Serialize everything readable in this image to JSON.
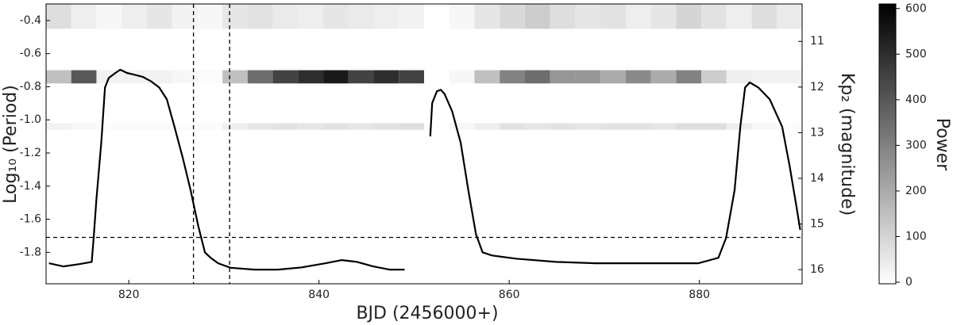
{
  "chart_data": {
    "type": "heatmap",
    "x_label": "BJD (2456000+)",
    "y_label": "Log₁₀ (Period)",
    "y2_label": "Kp₂ (magnitude)",
    "colorbar_label": "Power",
    "xlim": [
      811.3,
      890.8
    ],
    "xticks": [
      820,
      840,
      860,
      880
    ],
    "ylim": [
      -1.99,
      -0.3
    ],
    "yticks": [
      -0.4,
      -0.6,
      -0.8,
      {
        "value": -1,
        "label": "-1.0"
      },
      -1.2,
      -1.4,
      -1.6,
      -1.8
    ],
    "y2lim": [
      10.18,
      16.31
    ],
    "y2_inverted": true,
    "y2ticks": [
      11,
      12,
      13,
      14,
      15,
      16
    ],
    "clim": [
      0,
      610
    ],
    "cticks": [
      0,
      100,
      200,
      300,
      400,
      500,
      600
    ],
    "vlines": [
      826.8,
      830.6
    ],
    "hlines": [
      -1.71
    ],
    "x_bins": [
      811.3,
      813.95,
      816.6,
      819.25,
      821.9,
      824.55,
      827.2,
      829.85,
      832.5,
      835.15,
      837.8,
      840.45,
      843.1,
      845.75,
      848.4,
      851.05,
      853.7,
      856.35,
      859.0,
      861.65,
      864.3,
      866.95,
      869.6,
      872.25,
      874.9,
      877.55,
      880.2,
      882.85,
      885.5,
      888.15,
      890.8
    ],
    "y_rows": [
      [
        -0.45,
        -0.3
      ],
      [
        -0.78,
        -0.7
      ],
      [
        -1.06,
        -1.02
      ]
    ],
    "z": [
      [
        80,
        40,
        20,
        40,
        60,
        30,
        20,
        60,
        70,
        50,
        40,
        60,
        50,
        40,
        30,
        0,
        20,
        60,
        90,
        120,
        80,
        60,
        70,
        40,
        60,
        100,
        70,
        40,
        80,
        50
      ],
      [
        150,
        400,
        30,
        30,
        30,
        20,
        10,
        150,
        350,
        450,
        500,
        550,
        450,
        500,
        450,
        0,
        20,
        150,
        300,
        350,
        250,
        250,
        200,
        280,
        200,
        300,
        120,
        40,
        30,
        30
      ],
      [
        30,
        20,
        10,
        10,
        10,
        10,
        10,
        40,
        60,
        70,
        60,
        70,
        60,
        70,
        80,
        0,
        20,
        40,
        70,
        60,
        70,
        60,
        70,
        70,
        60,
        80,
        80,
        40,
        20,
        10
      ]
    ],
    "series": [
      {
        "axis": "y2",
        "color": "#000000",
        "x": [
          811.6,
          813.1,
          814.8,
          816.1,
          816.3,
          816.6,
          817.1,
          817.5,
          817.9,
          818.6,
          819.1,
          819.8,
          820.6,
          821.5,
          822.3,
          823.2,
          824.0,
          824.8,
          825.7,
          826.5,
          827.3,
          828.0,
          828.6,
          829.4,
          830.7,
          833.2,
          835.7,
          838.2,
          840.7,
          842.4,
          844.0,
          845.7,
          847.4,
          849.0,
          850.3,
          851.7,
          851.9,
          852.4,
          852.8,
          853.2,
          854.0,
          854.9,
          855.7,
          856.5,
          857.2,
          858.2,
          860.7,
          864.9,
          869.1,
          873.2,
          877.4,
          879.9,
          882.0,
          882.8,
          883.7,
          884.3,
          884.8,
          885.3,
          886.2,
          887.4,
          888.7,
          889.5,
          890.2,
          890.6
        ],
        "values": [
          15.86,
          15.93,
          15.88,
          15.83,
          15.31,
          14.44,
          13.22,
          12.01,
          11.8,
          11.69,
          11.62,
          11.69,
          11.73,
          11.78,
          11.87,
          12.01,
          12.27,
          12.87,
          13.57,
          14.26,
          15.04,
          15.62,
          15.74,
          15.86,
          15.96,
          16.0,
          16.0,
          15.95,
          15.86,
          15.79,
          15.83,
          15.93,
          16.0,
          16.0,
          null,
          13.08,
          12.35,
          12.09,
          12.06,
          12.15,
          12.53,
          13.22,
          14.26,
          15.22,
          15.62,
          15.69,
          15.76,
          15.83,
          15.86,
          15.86,
          15.86,
          15.86,
          15.74,
          15.31,
          14.26,
          12.87,
          12.01,
          11.9,
          12.01,
          12.27,
          12.87,
          13.74,
          14.61,
          15.13
        ]
      }
    ]
  }
}
